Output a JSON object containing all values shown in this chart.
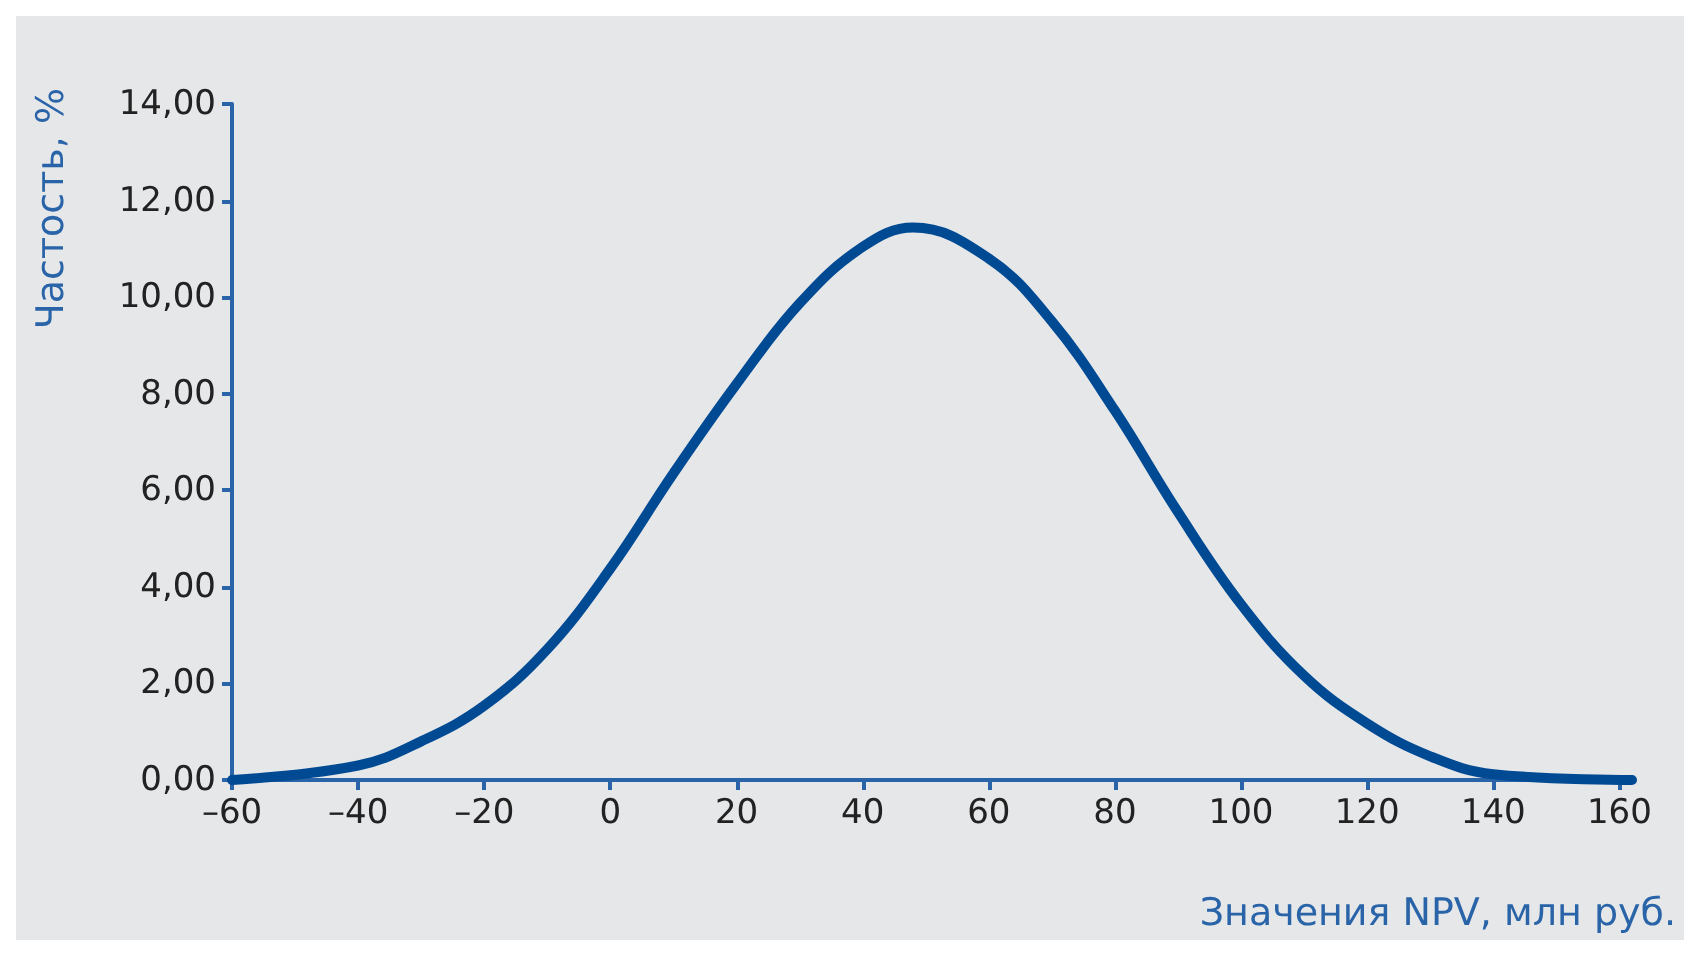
{
  "chart_data": {
    "type": "line",
    "xlabel": "Значения NPV, млн руб.",
    "ylabel": "Частость, %",
    "x": [
      -60,
      -40,
      -30,
      -20,
      -10,
      0,
      10,
      20,
      30,
      40,
      48,
      60,
      70,
      80,
      90,
      100,
      110,
      120,
      130,
      140,
      162
    ],
    "series": [
      {
        "color": "#004a94",
        "values": [
          0,
          0.3,
          0.8,
          1.54,
          2.71,
          4.38,
          6.35,
          8.2,
          9.87,
          11.04,
          11.44,
          10.8,
          9.5,
          7.65,
          5.55,
          3.64,
          2.16,
          1.17,
          0.49,
          0.12,
          0
        ]
      }
    ],
    "xlim": [
      -60,
      162
    ],
    "xticks": [
      {
        "value": -60,
        "label": "–60"
      },
      {
        "value": -40,
        "label": "–40"
      },
      {
        "value": -20,
        "label": "–20"
      },
      0,
      20,
      40,
      60,
      80,
      100,
      120,
      140,
      160
    ],
    "ylim": [
      0,
      14
    ],
    "yticks": [
      {
        "value": 0,
        "label": "0,00"
      },
      {
        "value": 2,
        "label": "2,00"
      },
      {
        "value": 4,
        "label": "4,00"
      },
      {
        "value": 6,
        "label": "6,00"
      },
      {
        "value": 8,
        "label": "8,00"
      },
      {
        "value": 10,
        "label": "10,00"
      },
      {
        "value": 12,
        "label": "12,00"
      },
      {
        "value": 14,
        "label": "14,00"
      }
    ],
    "grid": false,
    "marker": "none",
    "line_style": "solid"
  }
}
